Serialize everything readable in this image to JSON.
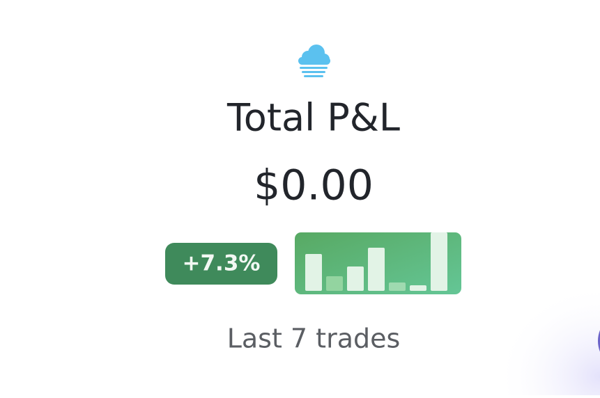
{
  "header": {
    "title": "Total P&L",
    "amount": "$0.00"
  },
  "badge": {
    "change": "+7.3%"
  },
  "sparkline": {
    "type": "bar",
    "values": [
      53,
      21,
      35,
      62,
      12,
      8,
      84
    ],
    "colors": [
      "#e2f3e6",
      "#93d4a0",
      "#e2f3e6",
      "#e2f3e6",
      "#9fdab0",
      "#e2f3e6",
      "#e2f3e6"
    ]
  },
  "footer": {
    "caption": "Last 7 trades"
  }
}
